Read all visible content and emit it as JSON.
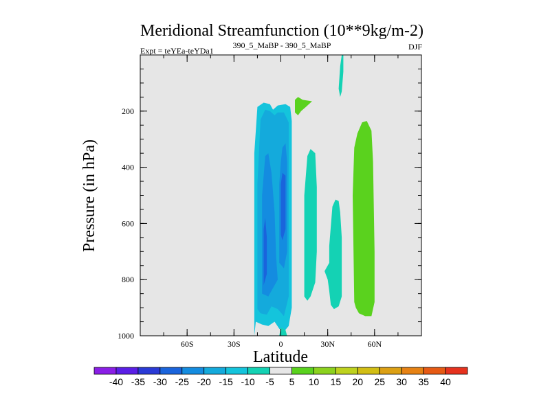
{
  "chart_data": {
    "type": "contour",
    "title": "Meridional Streamfunction (10**9kg/m-2)",
    "subtitle_left": "Expt = teYEa-teYDa1",
    "subtitle_center": "390_5_MaBP - 390_5_MaBP",
    "subtitle_right": "DJF",
    "xlabel": "Latitude",
    "ylabel": "Pressure (in hPa)",
    "xlim": [
      -90,
      90
    ],
    "ylim": [
      1000,
      0
    ],
    "x_ticks": [
      {
        "value": -60,
        "label": "60S"
      },
      {
        "value": -30,
        "label": "30S"
      },
      {
        "value": 0,
        "label": "0"
      },
      {
        "value": 30,
        "label": "30N"
      },
      {
        "value": 60,
        "label": "60N"
      }
    ],
    "y_ticks": [
      {
        "value": 200,
        "label": "200"
      },
      {
        "value": 400,
        "label": "400"
      },
      {
        "value": 600,
        "label": "600"
      },
      {
        "value": 800,
        "label": "800"
      },
      {
        "value": 1000,
        "label": "1000"
      }
    ],
    "background_color": "#e6e6e6",
    "contour_levels": [
      -40,
      -35,
      -30,
      -25,
      -20,
      -15,
      -10,
      -5,
      5,
      10,
      15,
      20,
      25,
      30,
      35,
      40
    ],
    "colorbar_colors": [
      "#8a1ee6",
      "#5a1ee6",
      "#2a3ad6",
      "#1a64dc",
      "#148ce0",
      "#14aadc",
      "#14c4dc",
      "#14d2b4",
      "#e6e6e6",
      "#5ad21e",
      "#8cd21e",
      "#bed21e",
      "#d2be14",
      "#dca014",
      "#e68214",
      "#e65a14",
      "#e6321e"
    ],
    "regions": [
      {
        "name": "sh-cell-outer",
        "color": "#14c4dc",
        "points": [
          [
            -17,
            1000
          ],
          [
            -17,
            910
          ],
          [
            -17,
            350
          ],
          [
            -15,
            185
          ],
          [
            -11,
            170
          ],
          [
            -7,
            175
          ],
          [
            -5,
            195
          ],
          [
            -2,
            180
          ],
          [
            3,
            175
          ],
          [
            6,
            185
          ],
          [
            7,
            235
          ],
          [
            7,
            900
          ],
          [
            5,
            965
          ],
          [
            2,
            985
          ],
          [
            -1,
            975
          ],
          [
            -4,
            950
          ],
          [
            -8,
            965
          ],
          [
            -12,
            960
          ],
          [
            -16,
            950
          ]
        ]
      },
      {
        "name": "sh-cell-band",
        "color": "#14aadc",
        "points": [
          [
            -15,
            905
          ],
          [
            -15,
            460
          ],
          [
            -13,
            230
          ],
          [
            -10,
            195
          ],
          [
            -7,
            200
          ],
          [
            -4,
            215
          ],
          [
            -2,
            205
          ],
          [
            2,
            205
          ],
          [
            5,
            240
          ],
          [
            5,
            860
          ],
          [
            2,
            930
          ],
          [
            -2,
            905
          ],
          [
            -6,
            895
          ],
          [
            -9,
            925
          ],
          [
            -13,
            920
          ]
        ]
      },
      {
        "name": "sh-cell-mid",
        "color": "#148ce0",
        "points": [
          [
            -12,
            850
          ],
          [
            -12,
            500
          ],
          [
            -10,
            360
          ],
          [
            -8,
            350
          ],
          [
            -6,
            420
          ],
          [
            -4,
            560
          ],
          [
            -3,
            720
          ],
          [
            -2,
            800
          ],
          [
            -5,
            830
          ],
          [
            -8,
            860
          ]
        ]
      },
      {
        "name": "sh-cell-mid-2",
        "color": "#148ce0",
        "points": [
          [
            -1,
            740
          ],
          [
            -1,
            460
          ],
          [
            0,
            380
          ],
          [
            1,
            330
          ],
          [
            3,
            315
          ],
          [
            4,
            380
          ],
          [
            4,
            700
          ],
          [
            2,
            760
          ]
        ]
      },
      {
        "name": "sh-cell-core",
        "color": "#1a64dc",
        "points": [
          [
            -11,
            820
          ],
          [
            -11,
            620
          ],
          [
            -10,
            580
          ],
          [
            -9,
            650
          ],
          [
            -9,
            780
          ]
        ]
      },
      {
        "name": "sh-cell-core-2",
        "color": "#1a64dc",
        "points": [
          [
            0,
            640
          ],
          [
            0,
            460
          ],
          [
            1,
            420
          ],
          [
            3,
            430
          ],
          [
            3,
            620
          ],
          [
            1,
            660
          ]
        ]
      },
      {
        "name": "sh-cell-tail",
        "color": "#14d2b4",
        "points": [
          [
            -1,
            1000
          ],
          [
            0,
            970
          ],
          [
            3,
            980
          ],
          [
            4,
            1000
          ]
        ]
      },
      {
        "name": "nh-cell-a",
        "color": "#14d2b4",
        "points": [
          [
            15,
            860
          ],
          [
            15,
            500
          ],
          [
            17,
            360
          ],
          [
            19,
            335
          ],
          [
            22,
            350
          ],
          [
            23,
            470
          ],
          [
            23,
            700
          ],
          [
            22,
            810
          ],
          [
            19,
            860
          ],
          [
            17,
            875
          ]
        ]
      },
      {
        "name": "nh-cell-b",
        "color": "#14d2b4",
        "points": [
          [
            28,
            770
          ],
          [
            29,
            760
          ],
          [
            31,
            740
          ],
          [
            31,
            680
          ],
          [
            33,
            540
          ],
          [
            35,
            515
          ],
          [
            37,
            520
          ],
          [
            38,
            560
          ],
          [
            39,
            650
          ],
          [
            39,
            860
          ],
          [
            37,
            895
          ],
          [
            34,
            905
          ],
          [
            32,
            890
          ],
          [
            31,
            840
          ],
          [
            30,
            800
          ]
        ]
      },
      {
        "name": "nh-jet-strand",
        "color": "#14d2b4",
        "points": [
          [
            37,
            120
          ],
          [
            38,
            40
          ],
          [
            39,
            0
          ],
          [
            40,
            0
          ],
          [
            40,
            60
          ],
          [
            39,
            130
          ],
          [
            38,
            150
          ]
        ]
      },
      {
        "name": "nh-upper-blob",
        "color": "#5ad21e",
        "points": [
          [
            9,
            160
          ],
          [
            11,
            150
          ],
          [
            14,
            160
          ],
          [
            20,
            165
          ],
          [
            16,
            185
          ],
          [
            13,
            200
          ],
          [
            11,
            215
          ],
          [
            9,
            205
          ]
        ]
      },
      {
        "name": "nh-ferrel-cell",
        "color": "#5ad21e",
        "points": [
          [
            47,
            880
          ],
          [
            46,
            500
          ],
          [
            47,
            330
          ],
          [
            49,
            280
          ],
          [
            52,
            240
          ],
          [
            55,
            235
          ],
          [
            58,
            270
          ],
          [
            59,
            380
          ],
          [
            60,
            700
          ],
          [
            60,
            880
          ],
          [
            58,
            930
          ],
          [
            54,
            930
          ],
          [
            50,
            920
          ],
          [
            48,
            900
          ]
        ]
      }
    ],
    "annotations": []
  }
}
